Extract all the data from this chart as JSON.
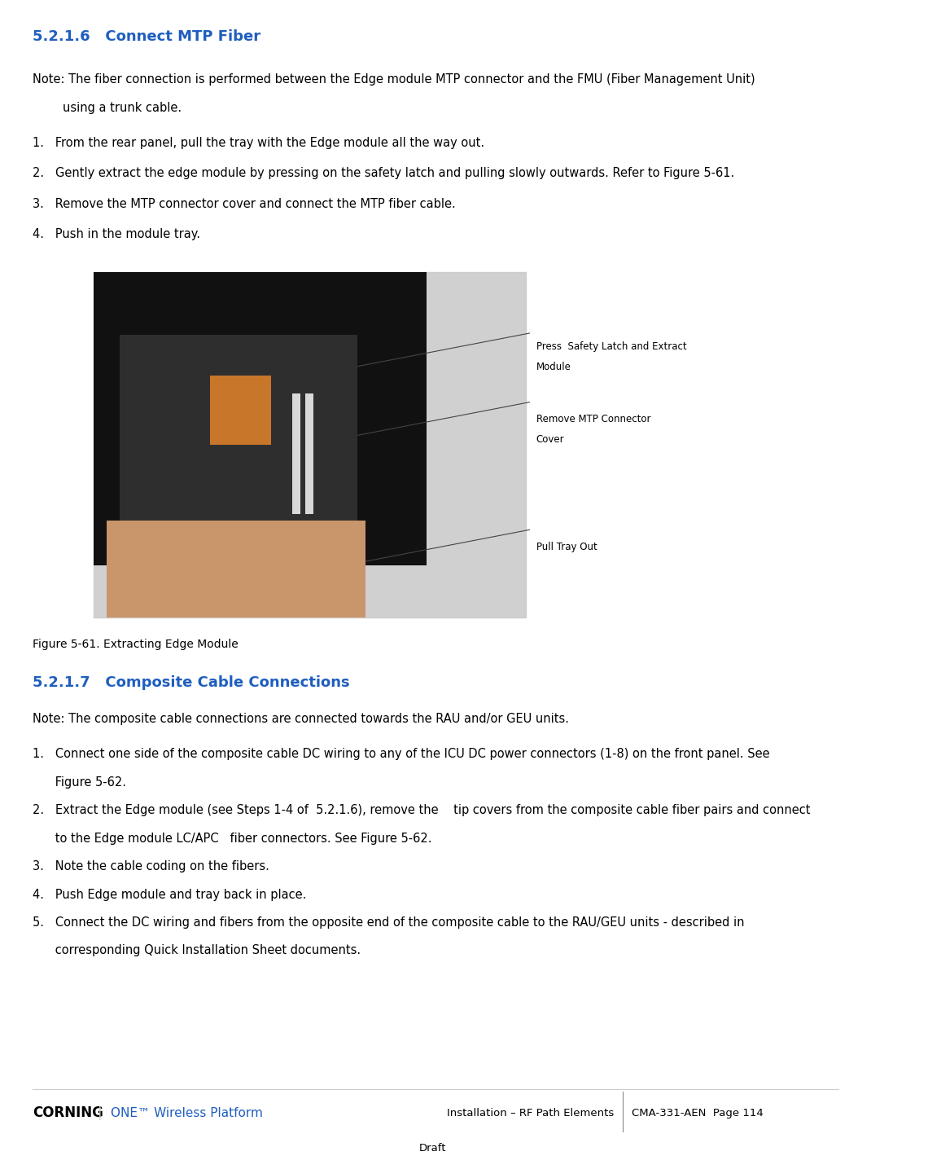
{
  "bg_color": "#ffffff",
  "heading1_color": "#1F5EBF",
  "text_color": "#000000",
  "gray_color": "#888888",
  "blue_corning": "#1F5EBF",
  "section1_heading": "5.2.1.6   Connect MTP Fiber",
  "note1_line1": "Note: The fiber connection is performed between the Edge module MTP connector and the FMU (Fiber Management Unit)",
  "note1_line2": "        using a trunk cable.",
  "steps1": [
    "1.   From the rear panel, pull the tray with the Edge module all the way out.",
    "2.   Gently extract the edge module by pressing on the safety latch and pulling slowly outwards. Refer to Figure 5-61.",
    "3.   Remove the MTP connector cover and connect the MTP fiber cable.",
    "4.   Push in the module tray."
  ],
  "fig_caption": "Figure 5-61. Extracting Edge Module",
  "section2_heading": "5.2.1.7   Composite Cable Connections",
  "note2": "Note: The composite cable connections are connected towards the RAU and/or GEU units.",
  "steps2_lines": [
    "1.   Connect one side of the composite cable DC wiring to any of the ICU DC power connectors (1-8) on the front panel. See",
    "      Figure 5-62.",
    "2.   Extract the Edge module (see Steps 1-4 of  5.2.1.6), remove the    tip covers from the composite cable fiber pairs and connect",
    "      to the Edge module LC/APC   fiber connectors. See Figure 5-62.",
    "3.   Note the cable coding on the fibers.",
    "4.   Push Edge module and tray back in place.",
    "5.   Connect the DC wiring and fibers from the opposite end of the composite cable to the RAU/GEU units - described in",
    "      corresponding Quick Installation Sheet documents."
  ],
  "footer_left1": "CORNING",
  "footer_left2": "ONE™ Wireless Platform",
  "footer_right1": "Installation – RF Path Elements",
  "footer_sep": "|",
  "footer_right2": "CMA-331-AEN  Page 114",
  "footer_draft": "Draft",
  "callout_texts": [
    "Press  Safety Latch and Extract",
    "Module",
    "Remove MTP Connector",
    "Cover",
    "",
    "Pull Tray Out"
  ]
}
